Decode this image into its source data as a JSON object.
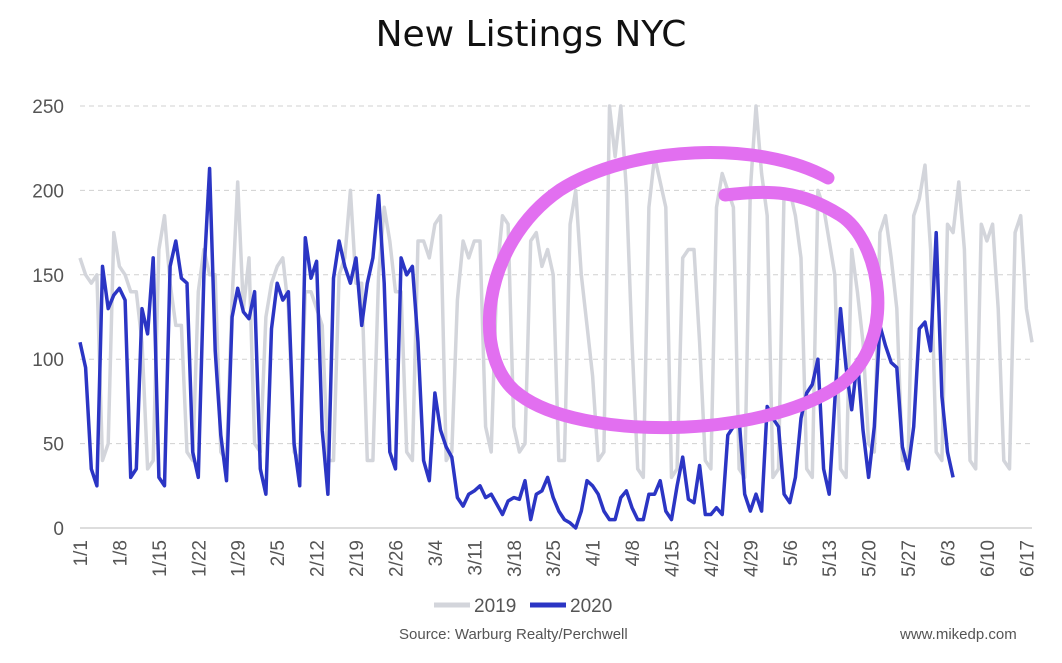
{
  "chart_data": {
    "type": "line",
    "title": "New Listings NYC",
    "xlabel": "",
    "ylabel": "",
    "ylim": [
      0,
      250
    ],
    "y_ticks": [
      "0",
      "50",
      "100",
      "150",
      "200",
      "250"
    ],
    "x_tick_labels": [
      "1/1",
      "1/8",
      "1/15",
      "1/22",
      "1/29",
      "2/5",
      "2/12",
      "2/19",
      "2/26",
      "3/4",
      "3/11",
      "3/18",
      "3/25",
      "4/1",
      "4/8",
      "4/15",
      "4/22",
      "4/29",
      "5/6",
      "5/13",
      "5/20",
      "5/27",
      "6/3",
      "6/10",
      "6/17"
    ],
    "grid": "horizontal dashed",
    "legend_position": "bottom",
    "colors": {
      "2019": "#d3d5db",
      "2020": "#2b35c4",
      "annotation": "#e26ff0"
    },
    "series": [
      {
        "name": "2019",
        "color": "#d3d5db",
        "values": [
          160,
          150,
          145,
          150,
          40,
          50,
          175,
          155,
          150,
          140,
          140,
          110,
          35,
          40,
          165,
          185,
          145,
          120,
          120,
          45,
          40,
          140,
          165,
          150,
          150,
          45,
          40,
          135,
          205,
          130,
          160,
          50,
          45,
          125,
          145,
          155,
          160,
          130,
          45,
          40,
          140,
          140,
          130,
          120,
          40,
          40,
          150,
          160,
          200,
          145,
          145,
          40,
          40,
          150,
          190,
          170,
          140,
          140,
          45,
          40,
          170,
          170,
          160,
          180,
          185,
          40,
          45,
          135,
          170,
          160,
          170,
          170,
          60,
          45,
          150,
          185,
          180,
          60,
          45,
          50,
          170,
          175,
          155,
          165,
          150,
          40,
          40,
          180,
          200,
          150,
          120,
          90,
          40,
          45,
          250,
          220,
          250,
          200,
          110,
          35,
          30,
          190,
          220,
          205,
          190,
          30,
          35,
          160,
          165,
          165,
          110,
          40,
          35,
          190,
          210,
          200,
          190,
          35,
          30,
          200,
          250,
          210,
          185,
          30,
          35,
          200,
          200,
          185,
          160,
          35,
          30,
          200,
          190,
          170,
          150,
          35,
          30,
          165,
          140,
          110,
          50,
          45,
          175,
          185,
          160,
          130,
          40,
          40,
          185,
          195,
          215,
          165,
          45,
          40,
          180,
          175,
          205,
          165,
          40,
          35,
          180,
          170,
          180,
          130,
          40,
          35,
          175,
          185,
          130,
          110
        ]
      },
      {
        "name": "2020",
        "color": "#2b35c4",
        "values": [
          110,
          95,
          35,
          25,
          155,
          130,
          138,
          142,
          135,
          30,
          35,
          130,
          115,
          160,
          30,
          25,
          155,
          170,
          148,
          145,
          45,
          30,
          150,
          213,
          105,
          55,
          28,
          125,
          142,
          128,
          124,
          140,
          35,
          20,
          118,
          145,
          135,
          140,
          50,
          25,
          172,
          148,
          158,
          58,
          20,
          148,
          170,
          155,
          145,
          160,
          120,
          145,
          160,
          197,
          145,
          45,
          35,
          160,
          150,
          155,
          110,
          40,
          28,
          80,
          58,
          48,
          42,
          18,
          13,
          20,
          22,
          25,
          18,
          20,
          14,
          8,
          16,
          18,
          17,
          28,
          5,
          20,
          22,
          30,
          18,
          10,
          5,
          3,
          0,
          10,
          28,
          25,
          20,
          10,
          5,
          5,
          18,
          22,
          12,
          5,
          5,
          20,
          20,
          28,
          10,
          5,
          25,
          42,
          17,
          15,
          37,
          8,
          8,
          12,
          8,
          55,
          60,
          65,
          20,
          10,
          20,
          10,
          72,
          65,
          60,
          20,
          15,
          30,
          65,
          80,
          85,
          100,
          35,
          20,
          75,
          130,
          95,
          70,
          100,
          58,
          30,
          60,
          120,
          108,
          98,
          95,
          48,
          35,
          60,
          118,
          122,
          105,
          175,
          78,
          45,
          30
        ]
      }
    ]
  },
  "footer": {
    "source": "Source: Warburg Realty/Perchwell",
    "credit": "www.mikedp.com"
  }
}
